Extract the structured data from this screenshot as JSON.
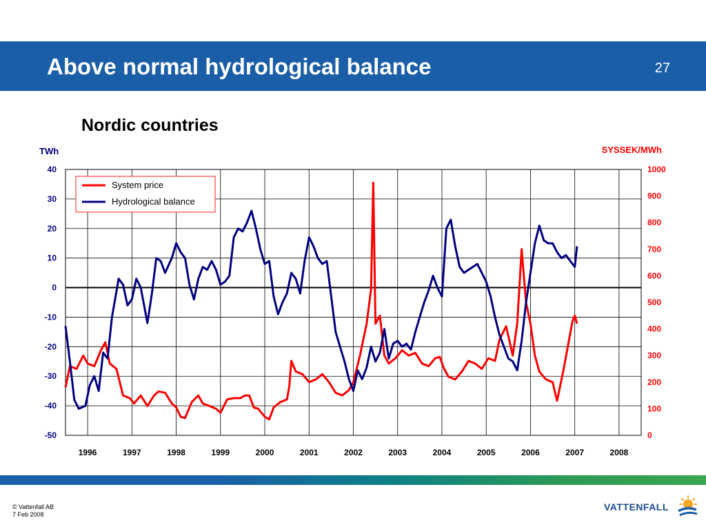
{
  "header": {
    "title": "Above normal hydrological balance",
    "page_number": "27"
  },
  "footer": {
    "copyright": "© Vattenfall AB",
    "date": "7 Feb 2008"
  },
  "logo": {
    "text": "VATTENFALL"
  },
  "colors": {
    "header": "#1a5ea8",
    "price": "#ff0000",
    "balance": "#000080",
    "legend_border": "#ff6666"
  },
  "chart_data": {
    "type": "line",
    "title": "Nordic countries",
    "y_left": {
      "label": "TWh",
      "min": -50,
      "max": 40,
      "ticks": [
        "40",
        "30",
        "20",
        "10",
        "0",
        "-10",
        "-20",
        "-30",
        "-40",
        "-50"
      ]
    },
    "y_right": {
      "label": "SYSSEK/MWh",
      "min": 0,
      "max": 1000,
      "ticks": [
        "1000",
        "900",
        "800",
        "700",
        "600",
        "500",
        "400",
        "300",
        "200",
        "100",
        "0"
      ]
    },
    "x": {
      "min": 1995.5,
      "max": 2008.5,
      "tick_labels": [
        "1996",
        "1997",
        "1998",
        "1999",
        "2000",
        "2001",
        "2002",
        "2003",
        "2004",
        "2005",
        "2006",
        "2007",
        "2008"
      ]
    },
    "legend": {
      "position": "top-left",
      "entries": [
        "System price",
        "Hydrological balance"
      ]
    },
    "grid": true,
    "series": [
      {
        "name": "System price",
        "axis": "right",
        "color": "#ff0000",
        "points": [
          [
            1995.5,
            180
          ],
          [
            1995.6,
            260
          ],
          [
            1995.75,
            250
          ],
          [
            1995.9,
            300
          ],
          [
            1996.0,
            270
          ],
          [
            1996.15,
            260
          ],
          [
            1996.3,
            320
          ],
          [
            1996.4,
            350
          ],
          [
            1996.5,
            270
          ],
          [
            1996.65,
            250
          ],
          [
            1996.8,
            150
          ],
          [
            1996.95,
            140
          ],
          [
            1997.05,
            120
          ],
          [
            1997.2,
            150
          ],
          [
            1997.35,
            110
          ],
          [
            1997.5,
            150
          ],
          [
            1997.6,
            165
          ],
          [
            1997.75,
            160
          ],
          [
            1997.9,
            120
          ],
          [
            1998.0,
            105
          ],
          [
            1998.1,
            70
          ],
          [
            1998.2,
            65
          ],
          [
            1998.35,
            125
          ],
          [
            1998.5,
            150
          ],
          [
            1998.6,
            120
          ],
          [
            1998.75,
            110
          ],
          [
            1998.9,
            100
          ],
          [
            1999.0,
            85
          ],
          [
            1999.15,
            135
          ],
          [
            1999.3,
            140
          ],
          [
            1999.45,
            140
          ],
          [
            1999.55,
            150
          ],
          [
            1999.65,
            150
          ],
          [
            1999.75,
            105
          ],
          [
            1999.85,
            100
          ],
          [
            2000.0,
            70
          ],
          [
            2000.1,
            60
          ],
          [
            2000.2,
            105
          ],
          [
            2000.35,
            125
          ],
          [
            2000.5,
            135
          ],
          [
            2000.55,
            180
          ],
          [
            2000.6,
            280
          ],
          [
            2000.7,
            240
          ],
          [
            2000.85,
            230
          ],
          [
            2001.0,
            200
          ],
          [
            2001.15,
            210
          ],
          [
            2001.3,
            230
          ],
          [
            2001.45,
            200
          ],
          [
            2001.6,
            160
          ],
          [
            2001.75,
            150
          ],
          [
            2001.9,
            170
          ],
          [
            2002.0,
            200
          ],
          [
            2002.15,
            300
          ],
          [
            2002.3,
            420
          ],
          [
            2002.4,
            550
          ],
          [
            2002.45,
            950
          ],
          [
            2002.5,
            420
          ],
          [
            2002.6,
            450
          ],
          [
            2002.7,
            300
          ],
          [
            2002.8,
            270
          ],
          [
            2002.95,
            290
          ],
          [
            2003.1,
            320
          ],
          [
            2003.25,
            300
          ],
          [
            2003.4,
            310
          ],
          [
            2003.55,
            270
          ],
          [
            2003.7,
            260
          ],
          [
            2003.85,
            290
          ],
          [
            2003.95,
            295
          ],
          [
            2004.05,
            250
          ],
          [
            2004.15,
            220
          ],
          [
            2004.3,
            210
          ],
          [
            2004.45,
            240
          ],
          [
            2004.6,
            280
          ],
          [
            2004.75,
            270
          ],
          [
            2004.9,
            250
          ],
          [
            2005.05,
            290
          ],
          [
            2005.2,
            280
          ],
          [
            2005.3,
            360
          ],
          [
            2005.45,
            410
          ],
          [
            2005.6,
            300
          ],
          [
            2005.7,
            420
          ],
          [
            2005.8,
            700
          ],
          [
            2005.9,
            500
          ],
          [
            2006.0,
            420
          ],
          [
            2006.1,
            300
          ],
          [
            2006.2,
            240
          ],
          [
            2006.35,
            210
          ],
          [
            2006.5,
            200
          ],
          [
            2006.6,
            130
          ],
          [
            2006.75,
            250
          ],
          [
            2006.85,
            340
          ],
          [
            2006.95,
            430
          ],
          [
            2007.0,
            450
          ],
          [
            2007.05,
            420
          ]
        ]
      },
      {
        "name": "Hydrological balance",
        "axis": "left",
        "color": "#000080",
        "points": [
          [
            1995.5,
            -13
          ],
          [
            1995.6,
            -25
          ],
          [
            1995.7,
            -38
          ],
          [
            1995.8,
            -41
          ],
          [
            1995.95,
            -40
          ],
          [
            1996.05,
            -33
          ],
          [
            1996.15,
            -30
          ],
          [
            1996.25,
            -35
          ],
          [
            1996.35,
            -22
          ],
          [
            1996.45,
            -24
          ],
          [
            1996.55,
            -10
          ],
          [
            1996.7,
            3
          ],
          [
            1996.8,
            1
          ],
          [
            1996.9,
            -6
          ],
          [
            1997.0,
            -4
          ],
          [
            1997.1,
            3
          ],
          [
            1997.2,
            0
          ],
          [
            1997.35,
            -12
          ],
          [
            1997.45,
            -2
          ],
          [
            1997.55,
            10
          ],
          [
            1997.65,
            9
          ],
          [
            1997.75,
            5
          ],
          [
            1997.9,
            10
          ],
          [
            1998.0,
            15
          ],
          [
            1998.1,
            12
          ],
          [
            1998.2,
            10
          ],
          [
            1998.3,
            1
          ],
          [
            1998.4,
            -4
          ],
          [
            1998.5,
            3
          ],
          [
            1998.6,
            7
          ],
          [
            1998.7,
            6
          ],
          [
            1998.8,
            9
          ],
          [
            1998.9,
            6
          ],
          [
            1999.0,
            1
          ],
          [
            1999.1,
            2
          ],
          [
            1999.2,
            4
          ],
          [
            1999.3,
            17
          ],
          [
            1999.4,
            20
          ],
          [
            1999.5,
            19
          ],
          [
            1999.6,
            22
          ],
          [
            1999.7,
            26
          ],
          [
            1999.8,
            20
          ],
          [
            1999.9,
            13
          ],
          [
            2000.0,
            8
          ],
          [
            2000.1,
            9
          ],
          [
            2000.2,
            -3
          ],
          [
            2000.3,
            -9
          ],
          [
            2000.4,
            -5
          ],
          [
            2000.5,
            -2
          ],
          [
            2000.6,
            5
          ],
          [
            2000.7,
            3
          ],
          [
            2000.8,
            -2
          ],
          [
            2000.9,
            9
          ],
          [
            2001.0,
            17
          ],
          [
            2001.1,
            14
          ],
          [
            2001.2,
            10
          ],
          [
            2001.3,
            8
          ],
          [
            2001.4,
            9
          ],
          [
            2001.5,
            -3
          ],
          [
            2001.6,
            -15
          ],
          [
            2001.7,
            -20
          ],
          [
            2001.8,
            -25
          ],
          [
            2001.9,
            -31
          ],
          [
            2002.0,
            -35
          ],
          [
            2002.1,
            -28
          ],
          [
            2002.2,
            -31
          ],
          [
            2002.3,
            -27
          ],
          [
            2002.4,
            -20
          ],
          [
            2002.5,
            -25
          ],
          [
            2002.6,
            -22
          ],
          [
            2002.7,
            -14
          ],
          [
            2002.8,
            -24
          ],
          [
            2002.9,
            -19
          ],
          [
            2003.0,
            -18
          ],
          [
            2003.1,
            -20
          ],
          [
            2003.2,
            -19
          ],
          [
            2003.3,
            -21
          ],
          [
            2003.4,
            -15
          ],
          [
            2003.5,
            -10
          ],
          [
            2003.6,
            -5
          ],
          [
            2003.7,
            -1
          ],
          [
            2003.8,
            4
          ],
          [
            2003.9,
            0
          ],
          [
            2004.0,
            -3
          ],
          [
            2004.1,
            20
          ],
          [
            2004.2,
            23
          ],
          [
            2004.3,
            14
          ],
          [
            2004.4,
            7
          ],
          [
            2004.5,
            5
          ],
          [
            2004.6,
            6
          ],
          [
            2004.7,
            7
          ],
          [
            2004.8,
            8
          ],
          [
            2004.9,
            5
          ],
          [
            2005.0,
            2
          ],
          [
            2005.1,
            -3
          ],
          [
            2005.2,
            -10
          ],
          [
            2005.3,
            -16
          ],
          [
            2005.4,
            -20
          ],
          [
            2005.5,
            -24
          ],
          [
            2005.6,
            -25
          ],
          [
            2005.7,
            -28
          ],
          [
            2005.8,
            -18
          ],
          [
            2005.9,
            -5
          ],
          [
            2006.0,
            5
          ],
          [
            2006.1,
            15
          ],
          [
            2006.2,
            21
          ],
          [
            2006.3,
            16
          ],
          [
            2006.4,
            15
          ],
          [
            2006.5,
            15
          ],
          [
            2006.6,
            12
          ],
          [
            2006.7,
            10
          ],
          [
            2006.8,
            11
          ],
          [
            2006.9,
            9
          ],
          [
            2007.0,
            7
          ],
          [
            2007.05,
            14
          ]
        ]
      }
    ]
  }
}
